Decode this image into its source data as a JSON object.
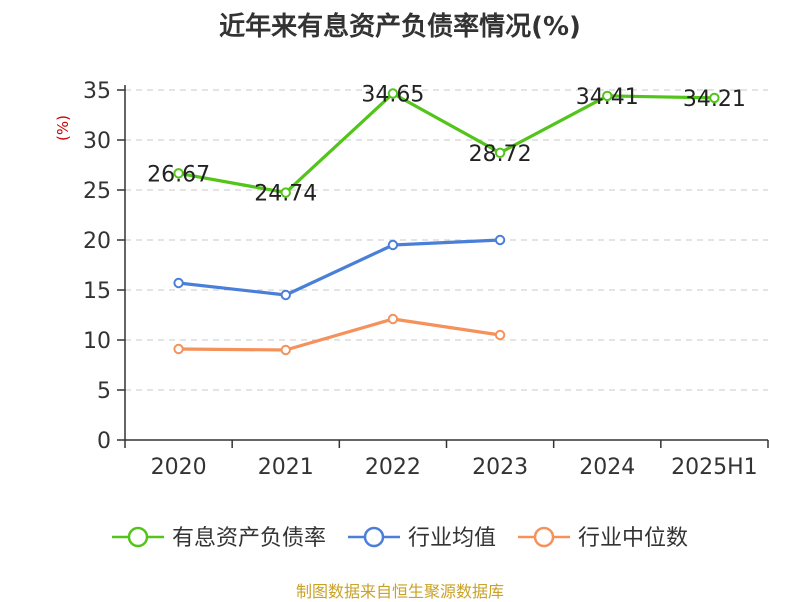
{
  "chart_data": {
    "type": "line",
    "title": "近年来有息资产负债率情况(%)",
    "ylabel": "(%)",
    "categories": [
      "2020",
      "2021",
      "2022",
      "2023",
      "2024",
      "2025H1"
    ],
    "ylim": [
      0,
      35
    ],
    "yticks": [
      0,
      5,
      10,
      15,
      20,
      25,
      30,
      35
    ],
    "grid": true,
    "legend_position": "bottom",
    "series": [
      {
        "name": "有息资产负债率",
        "color": "#52c41a",
        "values": [
          26.67,
          24.74,
          34.65,
          28.72,
          34.41,
          34.21
        ],
        "labels": [
          "26.67",
          "24.74",
          "34.65",
          "28.72",
          "34.41",
          "34.21"
        ]
      },
      {
        "name": "行业均值",
        "color": "#4a7fd9",
        "values": [
          15.7,
          14.5,
          19.5,
          20.0,
          null,
          null
        ]
      },
      {
        "name": "行业中位数",
        "color": "#f5915a",
        "values": [
          9.1,
          9.0,
          12.1,
          10.5,
          null,
          null
        ]
      }
    ]
  },
  "source": "制图数据来自恒生聚源数据库"
}
